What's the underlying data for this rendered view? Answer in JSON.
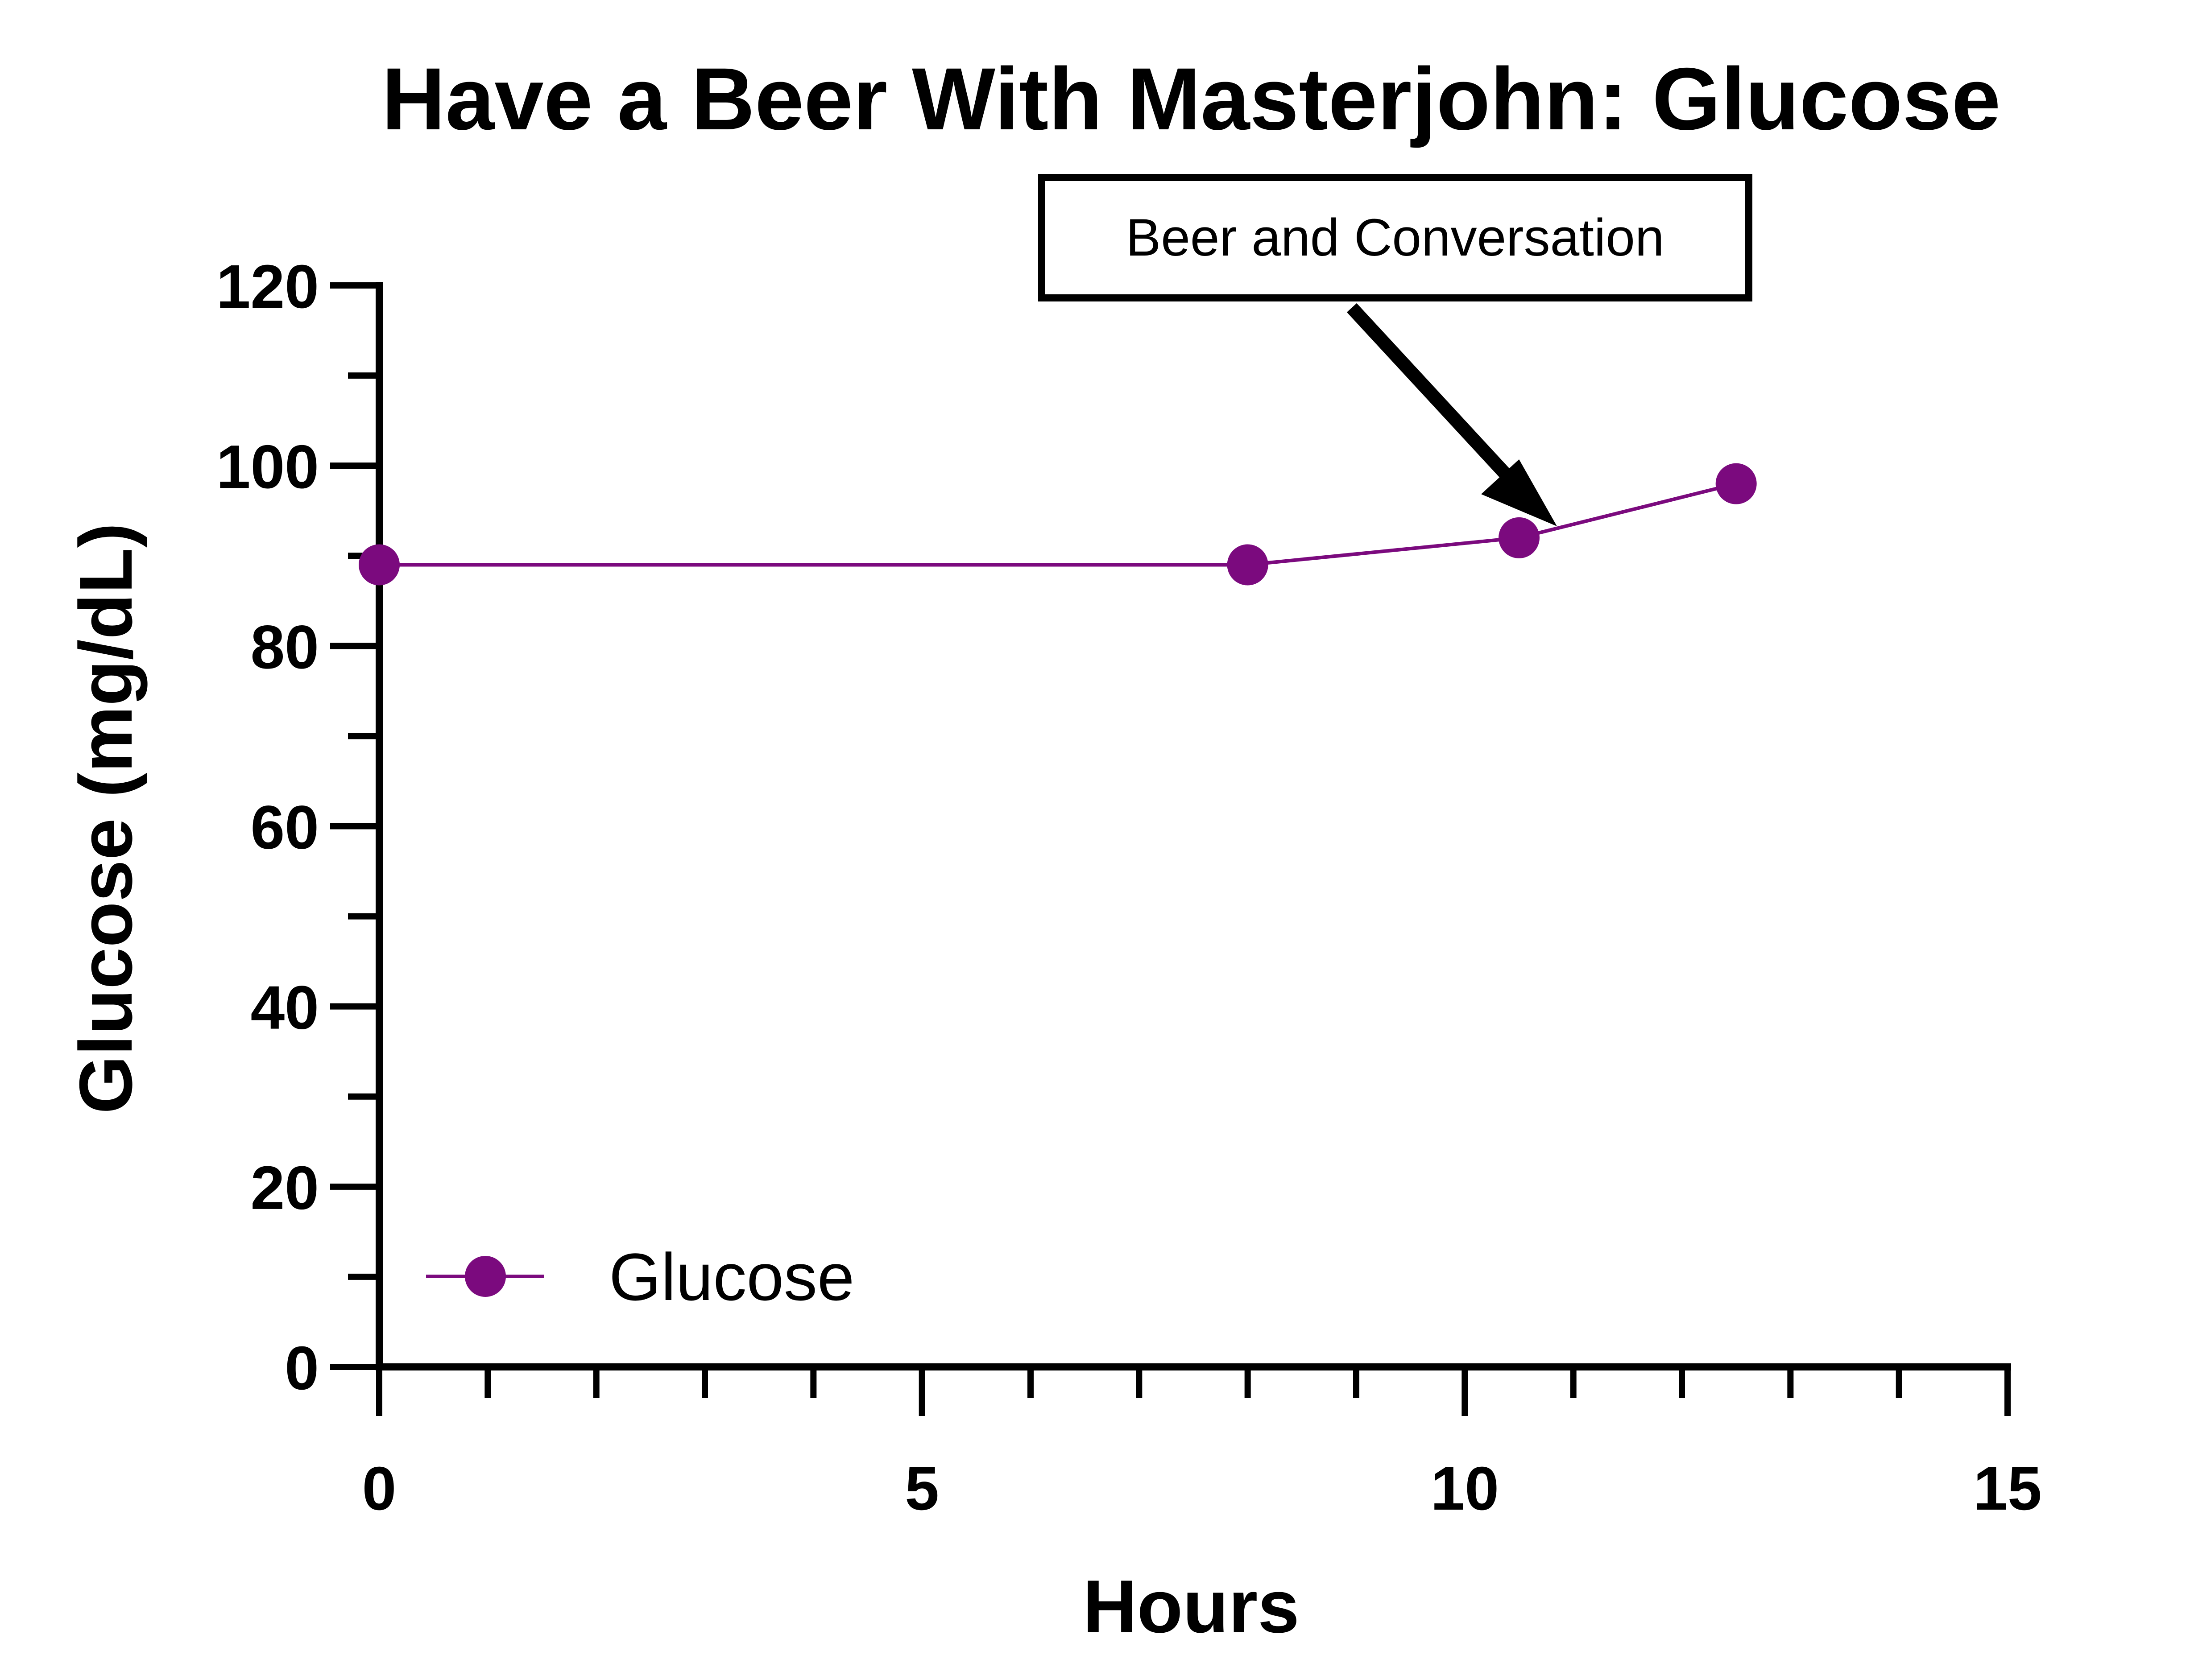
{
  "chart_data": {
    "type": "line",
    "title": "Have a Beer With Masterjohn: Glucose",
    "xlabel": "Hours",
    "ylabel": "Glucose (mg/dL)",
    "xlim": [
      0,
      15
    ],
    "ylim": [
      0,
      120
    ],
    "x_ticks": [
      0,
      5,
      10,
      15
    ],
    "y_ticks": [
      0,
      20,
      40,
      60,
      80,
      100,
      120
    ],
    "grid": false,
    "legend_position": "bottom-left",
    "series": [
      {
        "name": "Glucose",
        "color": "#7b0a7e",
        "x": [
          0,
          8,
          10.5,
          12.5
        ],
        "y": [
          89,
          89,
          92,
          98
        ]
      }
    ],
    "annotations": [
      {
        "text": "Beer and Conversation",
        "points_to_x": 10.9,
        "points_to_y": 93.5
      }
    ]
  }
}
